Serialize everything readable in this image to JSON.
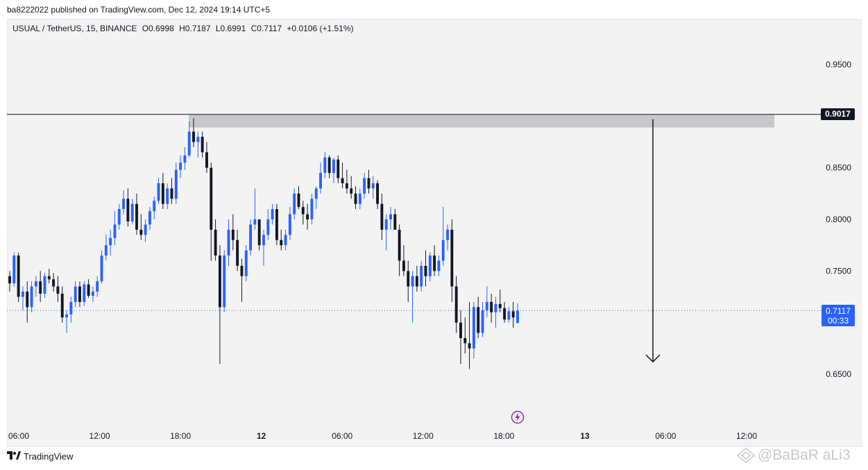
{
  "header": {
    "publish_text": "ba8222022 published on TradingView.com, Dec 12, 2024 19:14 UTC+5"
  },
  "legend": {
    "symbol": "USUAL / TetherUS, 15, BINANCE",
    "open": "O0.6998",
    "high": "H0.7187",
    "low": "L0.6991",
    "close": "C0.7117",
    "change": "+0.0106 (+1.51%)"
  },
  "level": {
    "value_label": "0.9017"
  },
  "price_label": {
    "price": "0.7117",
    "countdown": "00:33"
  },
  "footer": {
    "brand": "TradingView",
    "watermark": "@BaBaR aLi3"
  },
  "colors": {
    "up": "#2962ff",
    "down": "#131722",
    "zone": "#c8c8cc",
    "current_line": "#2962ff"
  },
  "icons": [
    "tradingview-logo-icon",
    "flash-icon",
    "arrow-down-icon",
    "watermark-logo-icon"
  ],
  "chart_data": {
    "type": "candlestick",
    "symbol": "USUAL / TetherUS",
    "interval": "15",
    "exchange": "BINANCE",
    "y_ticks": [
      0.95,
      0.85,
      0.8,
      0.75,
      0.65
    ],
    "y_tick_labels": [
      "0.9500",
      "0.8500",
      "0.8000",
      "0.7500",
      "0.6500"
    ],
    "x_tick_labels": [
      "06:00",
      "12:00",
      "18:00",
      "12",
      "06:00",
      "12:00",
      "18:00",
      "13",
      "06:00",
      "12:00"
    ],
    "resistance_level": 0.9017,
    "resistance_zone": [
      0.889,
      0.902
    ],
    "current_price": 0.7117,
    "target_arrow": {
      "from": 0.897,
      "to": 0.662
    },
    "candles": [
      [
        0.745,
        0.75,
        0.73,
        0.738
      ],
      [
        0.738,
        0.768,
        0.735,
        0.765
      ],
      [
        0.765,
        0.768,
        0.72,
        0.725
      ],
      [
        0.725,
        0.735,
        0.712,
        0.73
      ],
      [
        0.73,
        0.74,
        0.7,
        0.715
      ],
      [
        0.715,
        0.74,
        0.71,
        0.735
      ],
      [
        0.735,
        0.745,
        0.725,
        0.74
      ],
      [
        0.74,
        0.75,
        0.72,
        0.728
      ],
      [
        0.728,
        0.748,
        0.724,
        0.745
      ],
      [
        0.745,
        0.752,
        0.738,
        0.742
      ],
      [
        0.742,
        0.748,
        0.73,
        0.735
      ],
      [
        0.735,
        0.745,
        0.72,
        0.728
      ],
      [
        0.728,
        0.735,
        0.7,
        0.705
      ],
      [
        0.705,
        0.712,
        0.69,
        0.708
      ],
      [
        0.708,
        0.725,
        0.7,
        0.72
      ],
      [
        0.72,
        0.74,
        0.715,
        0.735
      ],
      [
        0.735,
        0.74,
        0.715,
        0.72
      ],
      [
        0.72,
        0.74,
        0.716,
        0.737
      ],
      [
        0.737,
        0.742,
        0.724,
        0.726
      ],
      [
        0.726,
        0.735,
        0.72,
        0.73
      ],
      [
        0.73,
        0.745,
        0.725,
        0.74
      ],
      [
        0.74,
        0.77,
        0.738,
        0.765
      ],
      [
        0.765,
        0.785,
        0.76,
        0.775
      ],
      [
        0.775,
        0.79,
        0.765,
        0.782
      ],
      [
        0.782,
        0.808,
        0.775,
        0.795
      ],
      [
        0.795,
        0.815,
        0.79,
        0.81
      ],
      [
        0.81,
        0.828,
        0.805,
        0.82
      ],
      [
        0.82,
        0.83,
        0.793,
        0.798
      ],
      [
        0.798,
        0.82,
        0.795,
        0.815
      ],
      [
        0.815,
        0.825,
        0.785,
        0.79
      ],
      [
        0.79,
        0.805,
        0.78,
        0.785
      ],
      [
        0.785,
        0.8,
        0.778,
        0.795
      ],
      [
        0.795,
        0.812,
        0.79,
        0.808
      ],
      [
        0.808,
        0.822,
        0.8,
        0.818
      ],
      [
        0.818,
        0.84,
        0.815,
        0.835
      ],
      [
        0.835,
        0.845,
        0.81,
        0.815
      ],
      [
        0.815,
        0.835,
        0.81,
        0.83
      ],
      [
        0.83,
        0.84,
        0.815,
        0.82
      ],
      [
        0.82,
        0.855,
        0.815,
        0.848
      ],
      [
        0.848,
        0.862,
        0.84,
        0.855
      ],
      [
        0.855,
        0.87,
        0.848,
        0.862
      ],
      [
        0.862,
        0.895,
        0.86,
        0.885
      ],
      [
        0.885,
        0.898,
        0.87,
        0.875
      ],
      [
        0.875,
        0.885,
        0.86,
        0.88
      ],
      [
        0.88,
        0.885,
        0.86,
        0.865
      ],
      [
        0.865,
        0.875,
        0.845,
        0.85
      ],
      [
        0.85,
        0.855,
        0.76,
        0.79
      ],
      [
        0.79,
        0.8,
        0.76,
        0.765
      ],
      [
        0.765,
        0.775,
        0.66,
        0.715
      ],
      [
        0.715,
        0.77,
        0.71,
        0.765
      ],
      [
        0.765,
        0.8,
        0.755,
        0.79
      ],
      [
        0.79,
        0.805,
        0.77,
        0.78
      ],
      [
        0.78,
        0.79,
        0.75,
        0.755
      ],
      [
        0.755,
        0.762,
        0.72,
        0.745
      ],
      [
        0.745,
        0.775,
        0.74,
        0.77
      ],
      [
        0.77,
        0.8,
        0.765,
        0.795
      ],
      [
        0.795,
        0.83,
        0.79,
        0.8
      ],
      [
        0.8,
        0.8,
        0.77,
        0.775
      ],
      [
        0.775,
        0.79,
        0.755,
        0.785
      ],
      [
        0.785,
        0.81,
        0.78,
        0.8
      ],
      [
        0.8,
        0.815,
        0.795,
        0.81
      ],
      [
        0.81,
        0.815,
        0.775,
        0.78
      ],
      [
        0.78,
        0.79,
        0.77,
        0.775
      ],
      [
        0.775,
        0.79,
        0.77,
        0.785
      ],
      [
        0.785,
        0.812,
        0.78,
        0.805
      ],
      [
        0.805,
        0.83,
        0.8,
        0.825
      ],
      [
        0.825,
        0.832,
        0.81,
        0.812
      ],
      [
        0.812,
        0.818,
        0.795,
        0.805
      ],
      [
        0.805,
        0.815,
        0.79,
        0.8
      ],
      [
        0.8,
        0.825,
        0.795,
        0.82
      ],
      [
        0.82,
        0.832,
        0.81,
        0.83
      ],
      [
        0.83,
        0.855,
        0.825,
        0.845
      ],
      [
        0.845,
        0.865,
        0.84,
        0.86
      ],
      [
        0.86,
        0.862,
        0.84,
        0.845
      ],
      [
        0.845,
        0.86,
        0.835,
        0.858
      ],
      [
        0.858,
        0.862,
        0.835,
        0.84
      ],
      [
        0.84,
        0.855,
        0.83,
        0.835
      ],
      [
        0.835,
        0.848,
        0.825,
        0.83
      ],
      [
        0.83,
        0.842,
        0.82,
        0.825
      ],
      [
        0.825,
        0.832,
        0.81,
        0.815
      ],
      [
        0.815,
        0.83,
        0.81,
        0.825
      ],
      [
        0.825,
        0.845,
        0.82,
        0.84
      ],
      [
        0.84,
        0.848,
        0.825,
        0.83
      ],
      [
        0.83,
        0.842,
        0.82,
        0.835
      ],
      [
        0.835,
        0.838,
        0.81,
        0.815
      ],
      [
        0.815,
        0.825,
        0.78,
        0.79
      ],
      [
        0.79,
        0.805,
        0.77,
        0.8
      ],
      [
        0.8,
        0.812,
        0.79,
        0.805
      ],
      [
        0.805,
        0.81,
        0.79,
        0.79
      ],
      [
        0.79,
        0.795,
        0.745,
        0.76
      ],
      [
        0.76,
        0.775,
        0.745,
        0.75
      ],
      [
        0.75,
        0.76,
        0.72,
        0.735
      ],
      [
        0.735,
        0.75,
        0.7,
        0.745
      ],
      [
        0.745,
        0.755,
        0.73,
        0.735
      ],
      [
        0.735,
        0.76,
        0.73,
        0.755
      ],
      [
        0.755,
        0.77,
        0.735,
        0.745
      ],
      [
        0.745,
        0.768,
        0.74,
        0.765
      ],
      [
        0.765,
        0.775,
        0.745,
        0.75
      ],
      [
        0.75,
        0.765,
        0.745,
        0.76
      ],
      [
        0.76,
        0.812,
        0.755,
        0.78
      ],
      [
        0.78,
        0.795,
        0.77,
        0.79
      ],
      [
        0.79,
        0.8,
        0.72,
        0.735
      ],
      [
        0.735,
        0.745,
        0.69,
        0.7
      ],
      [
        0.7,
        0.712,
        0.66,
        0.685
      ],
      [
        0.685,
        0.705,
        0.67,
        0.68
      ],
      [
        0.68,
        0.72,
        0.655,
        0.675
      ],
      [
        0.675,
        0.72,
        0.665,
        0.715
      ],
      [
        0.715,
        0.725,
        0.685,
        0.69
      ],
      [
        0.69,
        0.72,
        0.686,
        0.712
      ],
      [
        0.712,
        0.735,
        0.705,
        0.72
      ],
      [
        0.72,
        0.728,
        0.7,
        0.71
      ],
      [
        0.71,
        0.725,
        0.695,
        0.718
      ],
      [
        0.718,
        0.732,
        0.71,
        0.714
      ],
      [
        0.714,
        0.72,
        0.7,
        0.703
      ],
      [
        0.703,
        0.715,
        0.7,
        0.711
      ],
      [
        0.711,
        0.72,
        0.695,
        0.705
      ],
      [
        0.6998,
        0.7187,
        0.6991,
        0.7117
      ]
    ]
  }
}
